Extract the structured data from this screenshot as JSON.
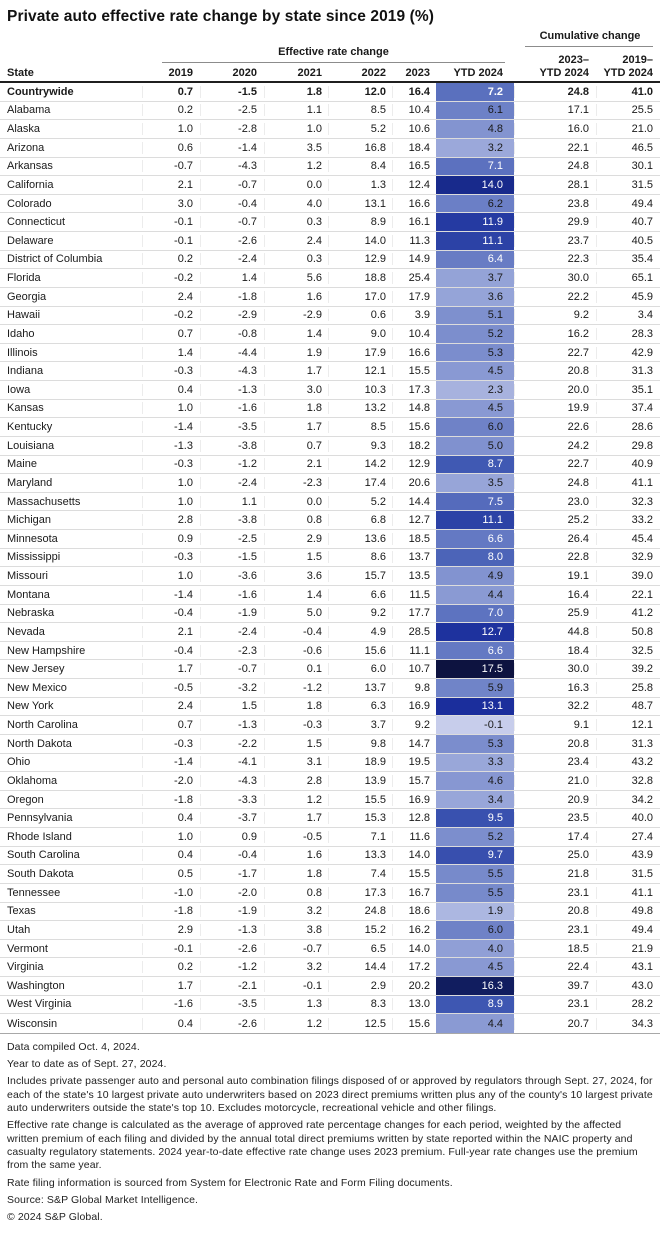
{
  "title": "Private auto effective rate change by state since 2019 (%)",
  "header": {
    "state_label": "State",
    "effective_group": "Effective rate change",
    "cumulative_group": "Cumulative change",
    "year_columns": [
      "2019",
      "2020",
      "2021",
      "2022",
      "2023",
      "YTD 2024"
    ],
    "cumulative_columns": [
      {
        "line1": "2023–",
        "line2": "YTD 2024"
      },
      {
        "line1": "2019–",
        "line2": "YTD 2024"
      }
    ]
  },
  "chart_data": {
    "type": "table",
    "title": "Private auto effective rate change by state since 2019 (%)",
    "columns": [
      "State",
      "2019",
      "2020",
      "2021",
      "2022",
      "2023",
      "YTD 2024",
      "2023–YTD 2024",
      "2019–YTD 2024"
    ],
    "heat_column": "YTD 2024",
    "heat_column_index": 6,
    "heat_range": [
      -0.1,
      17.5
    ],
    "heat_color_stops": [
      {
        "t": 0.0,
        "color": "#c7cdeb"
      },
      {
        "t": 0.25,
        "color": "#8c9cd4"
      },
      {
        "t": 0.5,
        "color": "#4059b3"
      },
      {
        "t": 0.75,
        "color": "#1b2e9c"
      },
      {
        "t": 0.9,
        "color": "#13226e"
      },
      {
        "t": 1.0,
        "color": "#0d1340"
      }
    ],
    "heat_white_text_min": 6.35,
    "emphasis_row": "Countrywide",
    "rows": [
      [
        "Countrywide",
        0.7,
        -1.5,
        1.8,
        12.0,
        16.4,
        7.2,
        24.8,
        41.0
      ],
      [
        "Alabama",
        0.2,
        -2.5,
        1.1,
        8.5,
        10.4,
        6.1,
        17.1,
        25.5
      ],
      [
        "Alaska",
        1.0,
        -2.8,
        1.0,
        5.2,
        10.6,
        4.8,
        16.0,
        21.0
      ],
      [
        "Arizona",
        0.6,
        -1.4,
        3.5,
        16.8,
        18.4,
        3.2,
        22.1,
        46.5
      ],
      [
        "Arkansas",
        -0.7,
        -4.3,
        1.2,
        8.4,
        16.5,
        7.1,
        24.8,
        30.1
      ],
      [
        "California",
        2.1,
        -0.7,
        0.0,
        1.3,
        12.4,
        14.0,
        28.1,
        31.5
      ],
      [
        "Colorado",
        3.0,
        -0.4,
        4.0,
        13.1,
        16.6,
        6.2,
        23.8,
        49.4
      ],
      [
        "Connecticut",
        -0.1,
        -0.7,
        0.3,
        8.9,
        16.1,
        11.9,
        29.9,
        40.7
      ],
      [
        "Delaware",
        -0.1,
        -2.6,
        2.4,
        14.0,
        11.3,
        11.1,
        23.7,
        40.5
      ],
      [
        "District of Columbia",
        0.2,
        -2.4,
        0.3,
        12.9,
        14.9,
        6.4,
        22.3,
        35.4
      ],
      [
        "Florida",
        -0.2,
        1.4,
        5.6,
        18.8,
        25.4,
        3.7,
        30.0,
        65.1
      ],
      [
        "Georgia",
        2.4,
        -1.8,
        1.6,
        17.0,
        17.9,
        3.6,
        22.2,
        45.9
      ],
      [
        "Hawaii",
        -0.2,
        -2.9,
        -2.9,
        0.6,
        3.9,
        5.1,
        9.2,
        3.4
      ],
      [
        "Idaho",
        0.7,
        -0.8,
        1.4,
        9.0,
        10.4,
        5.2,
        16.2,
        28.3
      ],
      [
        "Illinois",
        1.4,
        -4.4,
        1.9,
        17.9,
        16.6,
        5.3,
        22.7,
        42.9
      ],
      [
        "Indiana",
        -0.3,
        -4.3,
        1.7,
        12.1,
        15.5,
        4.5,
        20.8,
        31.3
      ],
      [
        "Iowa",
        0.4,
        -1.3,
        3.0,
        10.3,
        17.3,
        2.3,
        20.0,
        35.1
      ],
      [
        "Kansas",
        1.0,
        -1.6,
        1.8,
        13.2,
        14.8,
        4.5,
        19.9,
        37.4
      ],
      [
        "Kentucky",
        -1.4,
        -3.5,
        1.7,
        8.5,
        15.6,
        6.0,
        22.6,
        28.6
      ],
      [
        "Louisiana",
        -1.3,
        -3.8,
        0.7,
        9.3,
        18.2,
        5.0,
        24.2,
        29.8
      ],
      [
        "Maine",
        -0.3,
        -1.2,
        2.1,
        14.2,
        12.9,
        8.7,
        22.7,
        40.9
      ],
      [
        "Maryland",
        1.0,
        -2.4,
        -2.3,
        17.4,
        20.6,
        3.5,
        24.8,
        41.1
      ],
      [
        "Massachusetts",
        1.0,
        1.1,
        0.0,
        5.2,
        14.4,
        7.5,
        23.0,
        32.3
      ],
      [
        "Michigan",
        2.8,
        -3.8,
        0.8,
        6.8,
        12.7,
        11.1,
        25.2,
        33.2
      ],
      [
        "Minnesota",
        0.9,
        -2.5,
        2.9,
        13.6,
        18.5,
        6.6,
        26.4,
        45.4
      ],
      [
        "Mississippi",
        -0.3,
        -1.5,
        1.5,
        8.6,
        13.7,
        8.0,
        22.8,
        32.9
      ],
      [
        "Missouri",
        1.0,
        -3.6,
        3.6,
        15.7,
        13.5,
        4.9,
        19.1,
        39.0
      ],
      [
        "Montana",
        -1.4,
        -1.6,
        1.4,
        6.6,
        11.5,
        4.4,
        16.4,
        22.1
      ],
      [
        "Nebraska",
        -0.4,
        -1.9,
        5.0,
        9.2,
        17.7,
        7.0,
        25.9,
        41.2
      ],
      [
        "Nevada",
        2.1,
        -2.4,
        -0.4,
        4.9,
        28.5,
        12.7,
        44.8,
        50.8
      ],
      [
        "New Hampshire",
        -0.4,
        -2.3,
        -0.6,
        15.6,
        11.1,
        6.6,
        18.4,
        32.5
      ],
      [
        "New Jersey",
        1.7,
        -0.7,
        0.1,
        6.0,
        10.7,
        17.5,
        30.0,
        39.2
      ],
      [
        "New Mexico",
        -0.5,
        -3.2,
        -1.2,
        13.7,
        9.8,
        5.9,
        16.3,
        25.8
      ],
      [
        "New York",
        2.4,
        1.5,
        1.8,
        6.3,
        16.9,
        13.1,
        32.2,
        48.7
      ],
      [
        "North Carolina",
        0.7,
        -1.3,
        -0.3,
        3.7,
        9.2,
        -0.1,
        9.1,
        12.1
      ],
      [
        "North Dakota",
        -0.3,
        -2.2,
        1.5,
        9.8,
        14.7,
        5.3,
        20.8,
        31.3
      ],
      [
        "Ohio",
        -1.4,
        -4.1,
        3.1,
        18.9,
        19.5,
        3.3,
        23.4,
        43.2
      ],
      [
        "Oklahoma",
        -2.0,
        -4.3,
        2.8,
        13.9,
        15.7,
        4.6,
        21.0,
        32.8
      ],
      [
        "Oregon",
        -1.8,
        -3.3,
        1.2,
        15.5,
        16.9,
        3.4,
        20.9,
        34.2
      ],
      [
        "Pennsylvania",
        0.4,
        -3.7,
        1.7,
        15.3,
        12.8,
        9.5,
        23.5,
        40.0
      ],
      [
        "Rhode Island",
        1.0,
        0.9,
        -0.5,
        7.1,
        11.6,
        5.2,
        17.4,
        27.4
      ],
      [
        "South Carolina",
        0.4,
        -0.4,
        1.6,
        13.3,
        14.0,
        9.7,
        25.0,
        43.9
      ],
      [
        "South Dakota",
        0.5,
        -1.7,
        1.8,
        7.4,
        15.5,
        5.5,
        21.8,
        31.5
      ],
      [
        "Tennessee",
        -1.0,
        -2.0,
        0.8,
        17.3,
        16.7,
        5.5,
        23.1,
        41.1
      ],
      [
        "Texas",
        -1.8,
        -1.9,
        3.2,
        24.8,
        18.6,
        1.9,
        20.8,
        49.8
      ],
      [
        "Utah",
        2.9,
        -1.3,
        3.8,
        15.2,
        16.2,
        6.0,
        23.1,
        49.4
      ],
      [
        "Vermont",
        -0.1,
        -2.6,
        -0.7,
        6.5,
        14.0,
        4.0,
        18.5,
        21.9
      ],
      [
        "Virginia",
        0.2,
        -1.2,
        3.2,
        14.4,
        17.2,
        4.5,
        22.4,
        43.1
      ],
      [
        "Washington",
        1.7,
        -2.1,
        -0.1,
        2.9,
        20.2,
        16.3,
        39.7,
        43.0
      ],
      [
        "West Virginia",
        -1.6,
        -3.5,
        1.3,
        8.3,
        13.0,
        8.9,
        23.1,
        28.2
      ],
      [
        "Wisconsin",
        0.4,
        -2.6,
        1.2,
        12.5,
        15.6,
        4.4,
        20.7,
        34.3
      ]
    ]
  },
  "footnotes": [
    "Data compiled Oct. 4, 2024.",
    "Year to date as of Sept. 27, 2024.",
    "Includes private passenger auto and personal auto combination filings disposed of or approved by regulators through Sept. 27, 2024, for each of the state's 10 largest private auto underwriters based on 2023 direct premiums written plus any of the county's 10 largest private auto underwriters outside the state's top 10. Excludes motorcycle, recreational vehicle and other filings.",
    "Effective rate change is calculated as the average of approved rate percentage changes for each period, weighted by the affected written premium of each filing and divided by the annual total direct premiums written by state reported within the NAIC property and casualty regulatory statements. 2024 year-to-date effective rate change uses 2023 premium. Full-year rate changes use the premium from the same year.",
    "Rate filing information is sourced from System for Electronic Rate and Form Filing documents.",
    "Source: S&P Global Market Intelligence.",
    "© 2024 S&P Global."
  ]
}
